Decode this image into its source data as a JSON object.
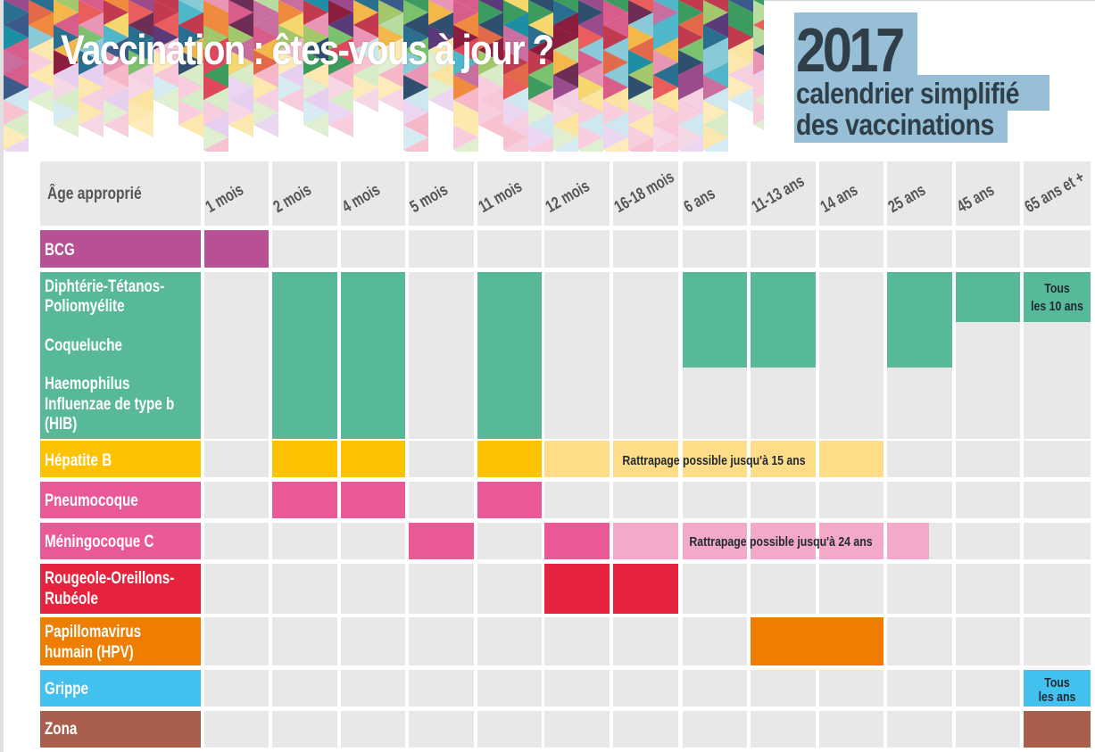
{
  "header": {
    "title": "Vaccination : êtes-vous à jour ?",
    "year": "2017",
    "subtitle_line1": "calendrier simplifié",
    "subtitle_line2": "des vaccinations",
    "year_box_color": "#97bfd8",
    "year_text_color": "#2f3e47"
  },
  "table": {
    "corner_label": "Âge approprié",
    "columns": [
      "1 mois",
      "2 mois",
      "4 mois",
      "5 mois",
      "11 mois",
      "12 mois",
      "16-18 mois",
      "6 ans",
      "11-13 ans",
      "14 ans",
      "25 ans",
      "45 ans",
      "65 ans et +"
    ],
    "rows": [
      {
        "label": "BCG",
        "color": "#b85094",
        "doses": [
          "1 mois"
        ]
      },
      {
        "label": "Diphtérie-Tétanos-Poliomyélite",
        "label_lines": [
          "Diphtérie-Tétanos-",
          "Poliomyélite"
        ],
        "color": "#58b998",
        "doses": [
          "2 mois",
          "4 mois",
          "11 mois",
          "6 ans",
          "11-13 ans",
          "25 ans",
          "45 ans",
          "65 ans et +"
        ],
        "note_65": "Tous les 10 ans"
      },
      {
        "label": "Coqueluche",
        "color": "#58b998",
        "doses": [
          "2 mois",
          "4 mois",
          "11 mois",
          "6 ans",
          "11-13 ans",
          "25 ans"
        ]
      },
      {
        "label": "Haemophilus Influenzae de type b (HIB)",
        "label_lines": [
          "Haemophilus",
          "Influenzae de type b",
          "(HIB)"
        ],
        "color": "#58b998",
        "doses": [
          "2 mois",
          "4 mois",
          "11 mois"
        ]
      },
      {
        "label": "Hépatite B",
        "color": "#fdc300",
        "doses": [
          "2 mois",
          "4 mois",
          "11 mois"
        ],
        "catchup": "Rattrapage possible jusqu'à 15 ans",
        "catchup_color": "#ffdd88"
      },
      {
        "label": "Pneumocoque",
        "color": "#e95897",
        "doses": [
          "2 mois",
          "4 mois",
          "11 mois"
        ]
      },
      {
        "label": "Méningocoque C",
        "color": "#e95897",
        "doses": [
          "5 mois",
          "12 mois"
        ],
        "catchup": "Rattrapage possible jusqu'à 24 ans",
        "catchup_color": "#f4a8ca"
      },
      {
        "label": "Rougeole-Oreillons-Rubéole",
        "label_lines": [
          "Rougeole-Oreillons-",
          "Rubéole"
        ],
        "color": "#e5233f",
        "doses": [
          "12 mois",
          "16-18 mois"
        ]
      },
      {
        "label": "Papillomavirus humain (HPV)",
        "label_lines": [
          "Papillomavirus",
          "humain (HPV)"
        ],
        "color": "#ef7d00",
        "doses": [
          "11-13 ans",
          "14 ans"
        ]
      },
      {
        "label": "Grippe",
        "color": "#42c0ee",
        "doses": [
          "65 ans et +"
        ],
        "note_65": "Tous les ans"
      },
      {
        "label": "Zona",
        "color": "#a95f4c",
        "doses": [
          "65 ans et +"
        ]
      }
    ],
    "notes": {
      "dtp_65_line1": "Tous",
      "dtp_65_line2": "les 10 ans",
      "grippe_65_line1": "Tous",
      "grippe_65_line2": "les ans",
      "hepb_catchup": "Rattrapage possible jusqu'à 15 ans",
      "mening_catchup": "Rattrapage possible jusqu'à 24 ans"
    },
    "empty_cell_color": "#e8e8e8"
  }
}
